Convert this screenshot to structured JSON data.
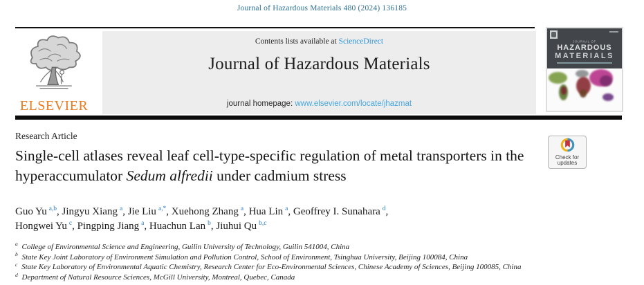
{
  "page": {
    "citation": "Journal of Hazardous Materials 480 (2024) 136185"
  },
  "masthead": {
    "contents_prefix": "Contents lists available at ",
    "sciencedirect_link": "ScienceDirect",
    "journal_title": "Journal of Hazardous Materials",
    "homepage_prefix": "journal homepage: ",
    "homepage_url": "www.elsevier.com/locate/jhazmat",
    "publisher_wordmark": "ELSEVIER"
  },
  "cover": {
    "journal_of": "JOURNAL OF",
    "title_line1": "HAZARDOUS",
    "title_line2": "MATERIALS"
  },
  "article": {
    "type_label": "Research Article",
    "title_pre": "Single-cell atlases reveal leaf cell-type-specific regulation of metal transporters in the hyperaccumulator ",
    "title_italic": "Sedum alfredii",
    "title_post": " under cadmium stress",
    "authors": [
      {
        "name": "Guo Yu",
        "sup": "a,b"
      },
      {
        "name": "Jingyu Xiang",
        "sup": "a"
      },
      {
        "name": "Jie Liu",
        "sup": "a,*"
      },
      {
        "name": "Xuehong Zhang",
        "sup": "a"
      },
      {
        "name": "Hua Lin",
        "sup": "a"
      },
      {
        "name": "Geoffrey I. Sunahara",
        "sup": "d",
        "br": true
      },
      {
        "name": "Hongwei Yu",
        "sup": "c"
      },
      {
        "name": "Pingping Jiang",
        "sup": "a"
      },
      {
        "name": "Huachun Lan",
        "sup": "b"
      },
      {
        "name": "Jiuhui Qu",
        "sup": "b,c"
      }
    ],
    "affiliations": [
      {
        "sup": "a",
        "text": "College of Environmental Science and Engineering, Guilin University of Technology, Guilin 541004, China"
      },
      {
        "sup": "b",
        "text": "State Key Joint Laboratory of Environment Simulation and Pollution Control, School of Environment, Tsinghua University, Beijing 100084, China"
      },
      {
        "sup": "c",
        "text": "State Key Laboratory of Environmental Aquatic Chemistry, Research Center for Eco-Environmental Sciences, Chinese Academy of Sciences, Beijing 100085, China"
      },
      {
        "sup": "d",
        "text": "Department of Natural Resource Sciences, McGill University, Montreal, Quebec, Canada"
      }
    ]
  },
  "crossmark": {
    "line1": "Check for",
    "line2": "updates"
  },
  "colors": {
    "citation_teal": "#2d7191",
    "link_blue": "#2e96d3",
    "homepage_link_blue": "#4aa7dc",
    "superscript_blue": "#2b7bbf",
    "elsevier_orange": "#e87c1e",
    "masthead_gray": "#ededee",
    "cover_dark": "#42464a",
    "crossmark_yellow": "#f2b21c",
    "crossmark_teal": "#3d93bb",
    "crossmark_red": "#c4303c"
  }
}
